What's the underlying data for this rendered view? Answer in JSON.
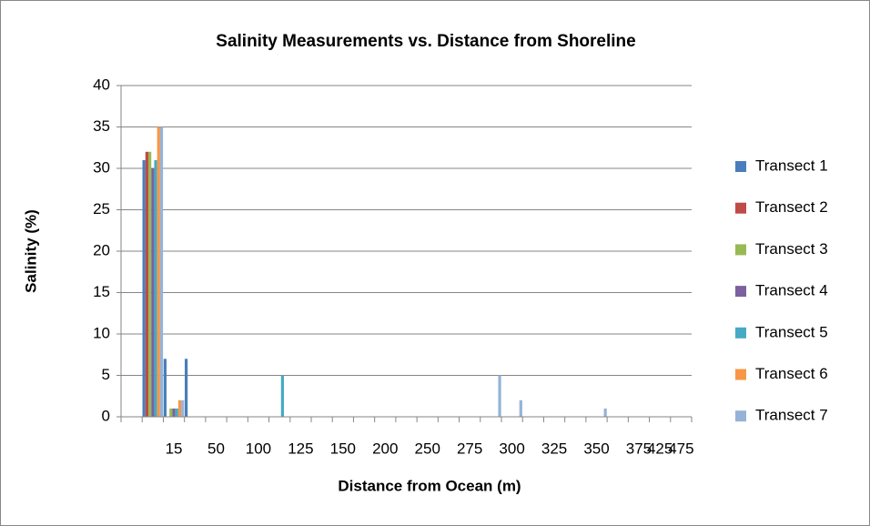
{
  "chart_data": {
    "type": "bar",
    "title": "Salinity Measurements vs. Distance from Shoreline",
    "xlabel": "Distance from Ocean (m)",
    "ylabel": "Salinity (%)",
    "categories": [
      null,
      null,
      "15",
      null,
      "50",
      null,
      "100",
      null,
      "125",
      null,
      "150",
      null,
      "200",
      null,
      "250",
      null,
      "275",
      null,
      "300",
      null,
      "325",
      null,
      "350",
      null,
      "375",
      "425",
      "475"
    ],
    "series": [
      {
        "name": "Transect 1",
        "color": "#4a7ebb",
        "values": [
          null,
          31,
          7,
          7,
          null,
          null,
          null,
          null,
          null,
          null,
          null,
          null,
          null,
          null,
          null,
          null,
          null,
          null,
          null,
          null,
          null,
          null,
          null,
          null,
          null,
          null,
          null
        ]
      },
      {
        "name": "Transect 2",
        "color": "#be4b48",
        "values": [
          null,
          32,
          null,
          null,
          null,
          null,
          null,
          null,
          null,
          null,
          null,
          null,
          null,
          null,
          null,
          null,
          null,
          null,
          null,
          null,
          null,
          null,
          null,
          null,
          null,
          null,
          null
        ]
      },
      {
        "name": "Transect 3",
        "color": "#98b954",
        "values": [
          null,
          32,
          1,
          null,
          null,
          null,
          null,
          null,
          null,
          null,
          null,
          null,
          null,
          null,
          null,
          null,
          null,
          null,
          null,
          null,
          null,
          null,
          null,
          null,
          null,
          null,
          null
        ]
      },
      {
        "name": "Transect 4",
        "color": "#7d60a0",
        "values": [
          null,
          30,
          1,
          null,
          null,
          null,
          null,
          null,
          null,
          null,
          null,
          null,
          null,
          null,
          null,
          null,
          null,
          null,
          null,
          null,
          null,
          null,
          null,
          null,
          null,
          null,
          null
        ]
      },
      {
        "name": "Transect 5",
        "color": "#46aac5",
        "values": [
          null,
          31,
          1,
          null,
          null,
          null,
          null,
          5,
          null,
          null,
          null,
          null,
          null,
          null,
          null,
          null,
          null,
          null,
          null,
          null,
          null,
          null,
          null,
          null,
          null,
          null,
          null
        ]
      },
      {
        "name": "Transect 6",
        "color": "#f79646",
        "values": [
          null,
          35,
          2,
          null,
          null,
          null,
          null,
          null,
          null,
          null,
          null,
          null,
          null,
          null,
          null,
          null,
          null,
          null,
          null,
          null,
          null,
          null,
          null,
          null,
          null,
          null,
          null
        ]
      },
      {
        "name": "Transect 7",
        "color": "#95b3d7",
        "values": [
          null,
          35,
          2,
          null,
          null,
          null,
          null,
          null,
          null,
          null,
          null,
          null,
          null,
          null,
          null,
          null,
          null,
          5,
          2,
          null,
          null,
          null,
          1,
          null,
          null,
          null,
          null
        ]
      }
    ],
    "ylim": [
      0,
      40
    ],
    "yticks": [
      0,
      5,
      10,
      15,
      20,
      25,
      30,
      35,
      40
    ],
    "grid": true,
    "legend": "right"
  }
}
